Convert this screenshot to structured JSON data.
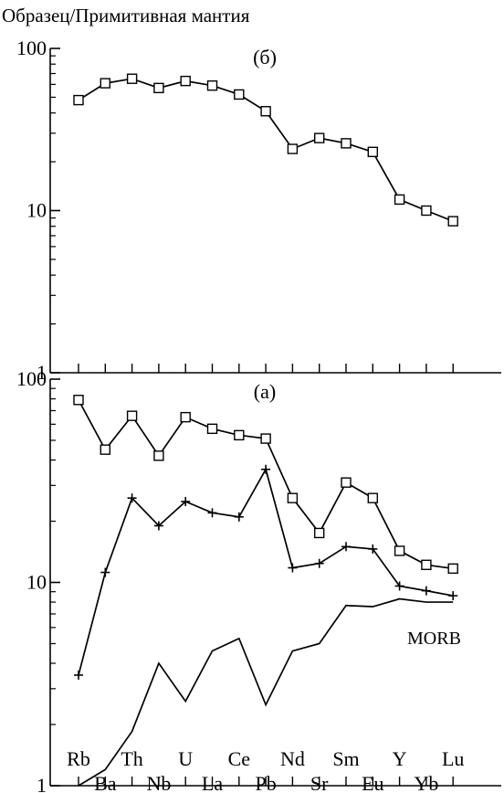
{
  "chart_data": {
    "type": "line",
    "y_axis_title": "Образец/Примитивная мантия",
    "y_scale": "log",
    "ylim": [
      1,
      100
    ],
    "y_ticks": [
      "1",
      "10",
      "100"
    ],
    "categories": [
      "Rb",
      "Ba",
      "Th",
      "Nb",
      "U",
      "La",
      "Ce",
      "Pb",
      "Nd",
      "Sr",
      "Sm",
      "Eu",
      "Y",
      "Yb",
      "Lu"
    ],
    "panels": [
      {
        "label": "(б)",
        "series": [
          {
            "marker": "square",
            "x": [
              "Rb",
              "Ba",
              "Th",
              "Nb",
              "U",
              "La",
              "Ce",
              "Pb",
              "Nd",
              "Sr",
              "Sm",
              "Eu",
              "Y",
              "Yb",
              "Lu"
            ],
            "values": [
              48,
              61,
              65,
              57,
              63,
              59,
              52,
              41,
              24,
              28,
              26,
              23,
              11.7,
              10,
              8.6
            ]
          }
        ]
      },
      {
        "label": "(а)",
        "series": [
          {
            "marker": "square",
            "x": [
              "Rb",
              "Ba",
              "Th",
              "Nb",
              "U",
              "La",
              "Ce",
              "Pb",
              "Nd",
              "Sr",
              "Sm",
              "Eu",
              "Y",
              "Yb",
              "Lu"
            ],
            "values": [
              79,
              45,
              66,
              42,
              65,
              57,
              53,
              51,
              26,
              17.5,
              31,
              26,
              14.3,
              12.2,
              11.7
            ]
          },
          {
            "marker": "plus",
            "x": [
              "Rb",
              "Ba",
              "Th",
              "Nb",
              "U",
              "La",
              "Ce",
              "Pb",
              "Nd",
              "Sr",
              "Sm",
              "Eu",
              "Y",
              "Yb",
              "Lu"
            ],
            "values": [
              3.5,
              11.2,
              26,
              19,
              25,
              22,
              21,
              36,
              11.8,
              12.4,
              15,
              14.6,
              9.6,
              9.1,
              8.6
            ]
          },
          {
            "name": "MORB",
            "marker": "none",
            "x": [
              "Rb",
              "Ba",
              "Th",
              "Nb",
              "U",
              "La",
              "Ce",
              "Pb",
              "Nd",
              "Sr",
              "Sm",
              "Eu",
              "Y",
              "Yb",
              "Lu"
            ],
            "values": [
              1,
              1.2,
              1.85,
              4,
              2.6,
              4.6,
              5.3,
              2.5,
              4.6,
              5,
              7.7,
              7.6,
              8.3,
              8,
              8
            ]
          }
        ]
      }
    ],
    "morb_label": "MORB"
  }
}
